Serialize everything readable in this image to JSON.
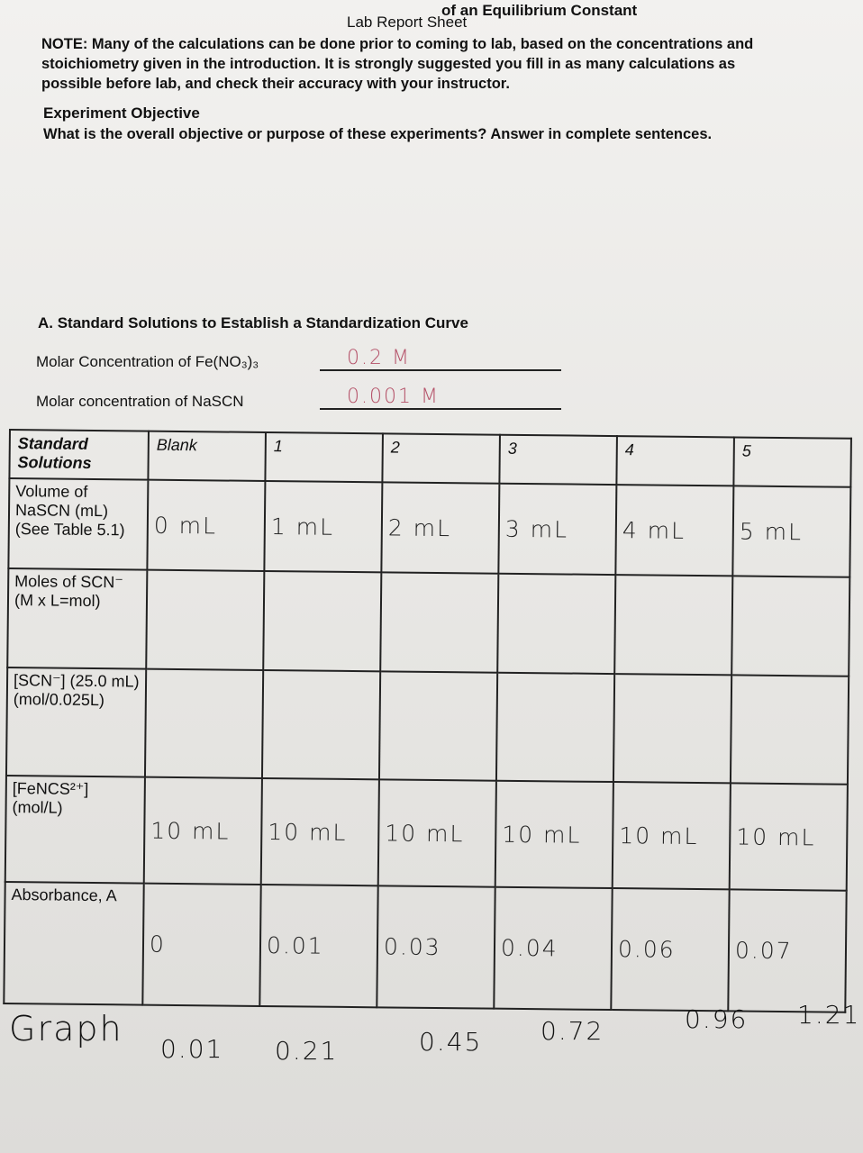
{
  "header": {
    "title": "of an Equilibrium Constant",
    "subtitle": "Lab Report Sheet",
    "note": "NOTE: Many of the calculations can be done prior to coming to lab, based on the concentrations and stoichiometry given in the introduction.  It is strongly suggested you fill in as many calculations as possible before lab, and check their accuracy with your instructor."
  },
  "objective": {
    "heading": "Experiment Objective",
    "question": "What is the overall objective or purpose of these experiments? Answer in complete sentences."
  },
  "section": {
    "heading": "A.  Standard Solutions to Establish a Standardization Curve",
    "fields": [
      {
        "label": "Molar Concentration of Fe(NO₃)₃",
        "answer": "0.2 M"
      },
      {
        "label": "Molar concentration of NaSCN",
        "answer": "0.001 M"
      }
    ]
  },
  "table": {
    "header": [
      "Standard Solutions",
      "Blank",
      "1",
      "2",
      "3",
      "4",
      "5"
    ],
    "rows": [
      {
        "label": "Volume of NaSCN (mL) (See Table 5.1)",
        "values": [
          "0 mL",
          "1 mL",
          "2 mL",
          "3 mL",
          "4 mL",
          "5 mL"
        ]
      },
      {
        "label": "Moles of SCN⁻ (M x L=mol)"
      },
      {
        "label": "[SCN⁻] (25.0 mL) (mol/0.025L)"
      },
      {
        "label": "[FeNCS²⁺] (mol/L)",
        "values": [
          "10 mL",
          "10 mL",
          "10 mL",
          "10 mL",
          "10 mL",
          "10 mL"
        ]
      },
      {
        "label": "Absorbance, A",
        "values": [
          "0",
          "0.01",
          "0.03",
          "0.04",
          "0.06",
          "0.07"
        ]
      }
    ]
  },
  "graph": {
    "label": "Graph",
    "values": [
      "0.01",
      "0.21",
      "0.45",
      "0.72",
      "0.96",
      "1.21"
    ]
  }
}
